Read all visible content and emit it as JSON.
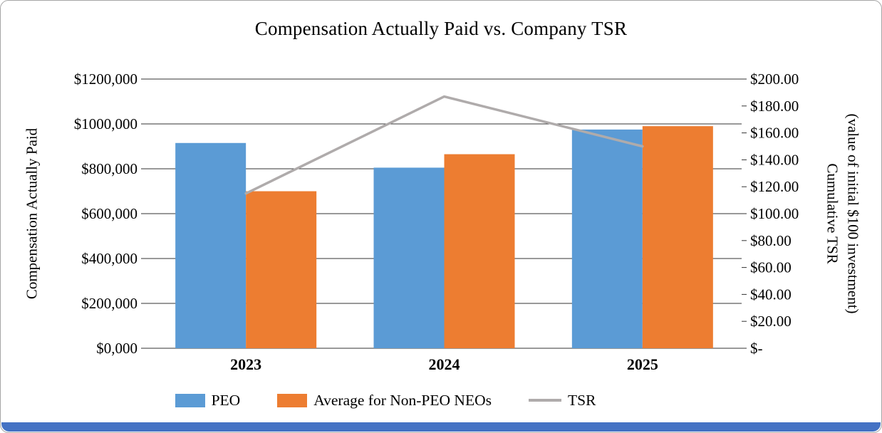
{
  "chart_data": {
    "type": "bar+line",
    "title": "Compensation Actually Paid vs. Company TSR",
    "categories": [
      "2023",
      "2024",
      "2025"
    ],
    "series": [
      {
        "name": "PEO",
        "type": "bar",
        "axis": "left",
        "color": "#5B9BD5",
        "values": [
          915000,
          805000,
          975000
        ]
      },
      {
        "name": "Average for Non-PEO NEOs",
        "type": "bar",
        "axis": "left",
        "color": "#ED7D31",
        "values": [
          700000,
          865000,
          990000
        ]
      },
      {
        "name": "TSR",
        "type": "line",
        "axis": "right",
        "color": "#AFABAB",
        "values": [
          115,
          187,
          150
        ]
      }
    ],
    "left_axis": {
      "label": "Compensation Actually Paid",
      "min": 0,
      "max": 1200000,
      "step": 200000,
      "tick_labels": [
        "$1200,000",
        "$1000,000",
        "$800,000",
        "$600,000",
        "$400,000",
        "$200,000",
        "$0,000"
      ]
    },
    "right_axis": {
      "label": "Cumulative TSR (value of initial $100 investment)",
      "label_line1": "Cumulative TSR",
      "label_line2": "(value of initial $100 investment)",
      "min": 0,
      "max": 200,
      "step": 20,
      "tick_labels": [
        "$200.00",
        "$180.00",
        "$160.00",
        "$140.00",
        "$120.00",
        "$100.00",
        "$80.00",
        "$60.00",
        "$40.00",
        "$20.00",
        "$-"
      ]
    },
    "grid": true,
    "legend_position": "bottom",
    "legend": [
      "PEO",
      "Average for Non-PEO NEOs",
      "TSR"
    ]
  },
  "footer_bar": {
    "color": "#4472C4"
  }
}
